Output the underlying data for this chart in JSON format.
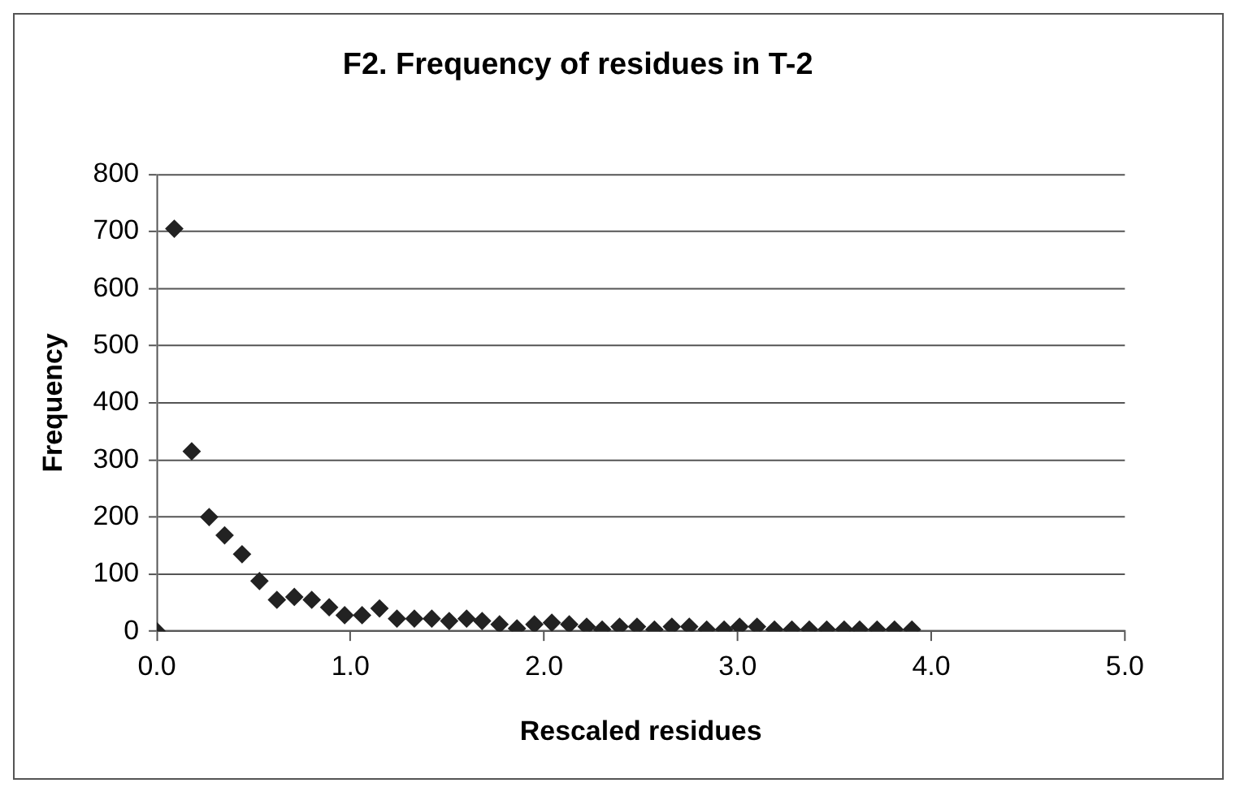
{
  "chart_data": {
    "type": "scatter",
    "title": "F2. Frequency of residues in T-2",
    "xlabel": "Rescaled residues",
    "ylabel": "Frequency",
    "x": [
      0,
      0.09,
      0.18,
      0.27,
      0.35,
      0.44,
      0.53,
      0.62,
      0.71,
      0.8,
      0.89,
      0.97,
      1.06,
      1.15,
      1.24,
      1.33,
      1.42,
      1.51,
      1.6,
      1.68,
      1.77,
      1.86,
      1.95,
      2.04,
      2.13,
      2.22,
      2.3,
      2.39,
      2.48,
      2.57,
      2.66,
      2.75,
      2.84,
      2.93,
      3.01,
      3.1,
      3.19,
      3.28,
      3.37,
      3.46,
      3.55,
      3.63,
      3.72,
      3.81,
      3.9
    ],
    "series": [
      {
        "color": "#222222",
        "values": [
          0,
          705,
          315,
          200,
          168,
          135,
          88,
          55,
          60,
          55,
          42,
          28,
          28,
          40,
          22,
          22,
          22,
          18,
          22,
          18,
          12,
          5,
          12,
          15,
          12,
          8,
          3,
          8,
          8,
          3,
          8,
          8,
          3,
          3,
          8,
          8,
          3,
          3,
          3,
          3,
          3,
          3,
          3,
          3,
          3
        ]
      }
    ],
    "xlim": [
      0,
      5
    ],
    "xticks": [
      {
        "value": 0,
        "label": "0.0"
      },
      {
        "value": 1,
        "label": "1.0"
      },
      {
        "value": 2,
        "label": "2.0"
      },
      {
        "value": 3,
        "label": "3.0"
      },
      {
        "value": 4,
        "label": "4.0"
      },
      {
        "value": 5,
        "label": "5.0"
      }
    ],
    "ylim": [
      0,
      800
    ],
    "yticks": [
      0,
      100,
      200,
      300,
      400,
      500,
      600,
      700,
      800
    ],
    "grid": "y",
    "legend": false,
    "marker": "diamond"
  }
}
